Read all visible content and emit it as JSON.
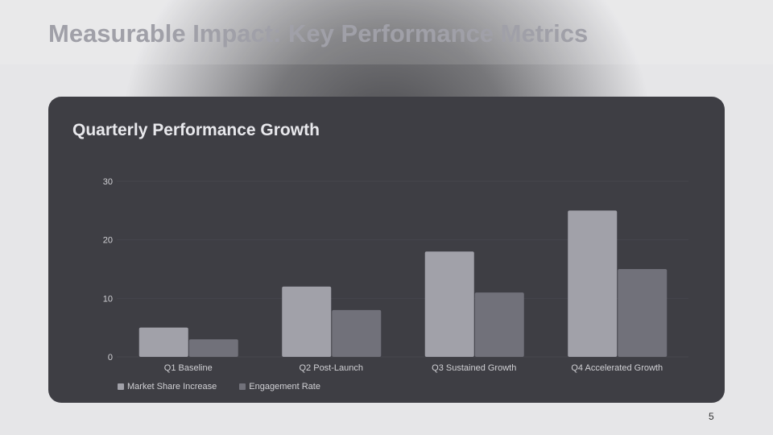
{
  "slide": {
    "title": "Measurable Impact: Key Performance Metrics",
    "page_number": "5"
  },
  "chart_data": {
    "type": "bar",
    "title": "Quarterly Performance Growth",
    "categories": [
      "Q1 Baseline",
      "Q2 Post-Launch",
      "Q3 Sustained Growth",
      "Q4 Accelerated Growth"
    ],
    "series": [
      {
        "name": "Market Share Increase",
        "values": [
          5,
          12,
          18,
          25
        ],
        "color": "#a1a1a9"
      },
      {
        "name": "Engagement Rate",
        "values": [
          3,
          8,
          11,
          15
        ],
        "color": "#71717a"
      }
    ],
    "yticks": [
      0,
      10,
      20,
      30
    ],
    "ylim": [
      0,
      30
    ],
    "grid": true,
    "legend": "bottom-left"
  }
}
